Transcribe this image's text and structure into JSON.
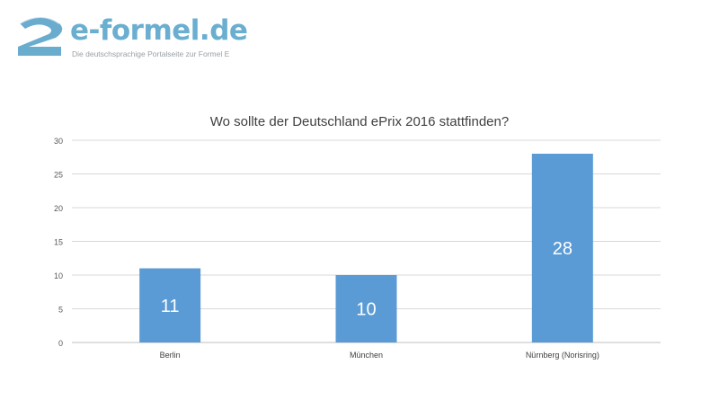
{
  "logo": {
    "name": "e-formel.de",
    "tagline": "Die deutschsprachige Portalseite zur Formel E",
    "brand_color": "#6aaed0",
    "mark_color": "#5aa3c8"
  },
  "chart_data": {
    "type": "bar",
    "title": "Wo sollte der Deutschland ePrix 2016 stattfinden?",
    "categories": [
      "Berlin",
      "München",
      "Nürnberg (Norisring)"
    ],
    "values": [
      11,
      10,
      28
    ],
    "data_labels": [
      "11",
      "10",
      "28"
    ],
    "xlabel": "",
    "ylabel": "",
    "ylim": [
      0,
      30
    ],
    "yticks": [
      "0",
      "5",
      "10",
      "15",
      "20",
      "25",
      "30"
    ],
    "grid": true,
    "legend": "none",
    "bar_color": "#5b9bd5",
    "grid_color": "#d9d9d9"
  }
}
